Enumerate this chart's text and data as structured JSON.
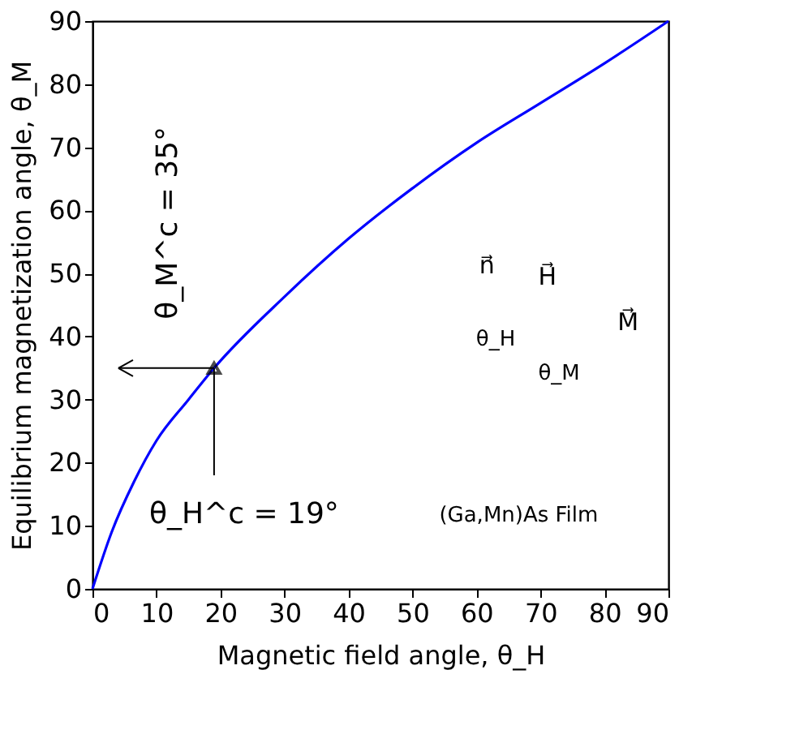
{
  "chart_data": {
    "type": "line",
    "xlabel": "Magnetic field angle, θ_H",
    "ylabel": "Equilibrium magnetization angle, θ_M",
    "x": [
      0,
      3,
      6.5,
      10,
      15,
      19,
      30,
      40,
      50,
      60,
      70,
      80,
      90
    ],
    "series": [
      {
        "color": "#0000ff",
        "values": [
          0,
          9,
          17,
          23.5,
          30,
          35,
          46.3,
          55.5,
          63.5,
          70.7,
          77,
          83.3,
          90
        ]
      }
    ],
    "xlim": [
      0,
      90
    ],
    "ylim": [
      0,
      90
    ],
    "xticks": [
      0,
      10,
      20,
      30,
      40,
      50,
      60,
      70,
      80,
      90
    ],
    "yticks": [
      0,
      10,
      20,
      30,
      40,
      50,
      60,
      70,
      80,
      90
    ],
    "marker": "none",
    "line_style": "solid",
    "annotations": [
      {
        "text": "θ_M^c = 35°",
        "x": 19,
        "y": 35
      },
      {
        "text": "θ_H^c = 19°",
        "x": 19,
        "y": 35
      },
      "(Ga,Mn)As Film",
      "n⃗",
      "H⃗",
      "M⃗",
      "θ_H",
      "θ_M"
    ]
  }
}
